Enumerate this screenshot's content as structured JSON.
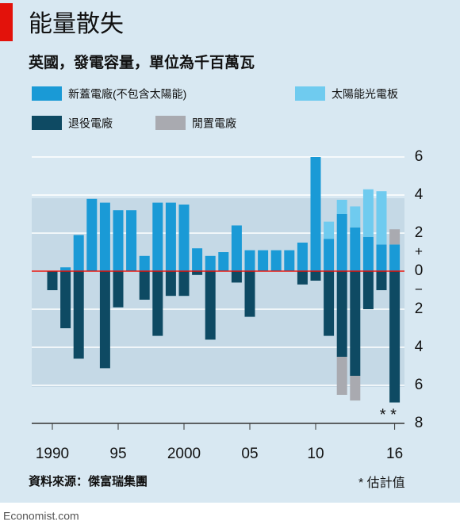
{
  "chart_data": {
    "type": "bar",
    "stacked": true,
    "title": "能量散失",
    "subtitle": "英國，發電容量，單位為千百萬瓦",
    "categories": [
      "1990",
      null,
      null,
      null,
      null,
      "95",
      null,
      null,
      null,
      null,
      "2000",
      null,
      null,
      null,
      null,
      "05",
      null,
      null,
      null,
      null,
      "10",
      null,
      null,
      null,
      null,
      null,
      "16"
    ],
    "series": [
      {
        "name": "新蓋電廠(不包含太陽能)",
        "color": "#1a9ad6",
        "values": [
          0,
          0.2,
          1.9,
          3.8,
          3.6,
          3.2,
          3.2,
          0.8,
          3.6,
          3.6,
          3.5,
          1.2,
          0.8,
          1.0,
          2.4,
          1.1,
          1.1,
          1.1,
          1.1,
          1.5,
          6.0,
          1.7,
          3.0,
          2.3,
          1.8,
          1.4,
          1.4
        ]
      },
      {
        "name": "太陽能光電板",
        "color": "#6fcbef",
        "values": [
          0,
          0,
          0,
          0,
          0,
          0,
          0,
          0,
          0,
          0,
          0,
          0,
          0,
          0,
          0,
          0,
          0,
          0,
          0,
          0,
          0,
          0.9,
          0.75,
          1.1,
          2.5,
          2.8,
          0
        ]
      },
      {
        "name": "退役電廠",
        "color": "#0e4a63",
        "values": [
          -1.0,
          -3.0,
          -4.6,
          0,
          -5.1,
          -1.9,
          0,
          -1.5,
          -3.4,
          -1.3,
          -1.3,
          -0.2,
          -3.6,
          0,
          -0.6,
          -2.4,
          0,
          0,
          0,
          -0.7,
          -0.5,
          -3.4,
          -4.5,
          -5.5,
          -2.0,
          -1.0,
          -6.9
        ]
      },
      {
        "name": "閒置電廠",
        "color": "#a9aab0",
        "values": [
          0,
          0,
          0,
          0,
          0,
          0,
          0,
          0,
          0,
          0,
          0,
          0,
          0,
          0,
          0,
          0,
          0,
          0,
          0,
          0,
          0,
          0,
          -2.0,
          -1.3,
          0,
          0,
          0.8
        ]
      }
    ],
    "ylim": [
      -8,
      6
    ],
    "yticks": [
      6,
      4,
      2,
      0,
      {
        "value": -2,
        "label": "2"
      },
      {
        "value": -4,
        "label": "4"
      },
      {
        "value": -6,
        "label": "6"
      },
      {
        "value": -8,
        "label": "8"
      }
    ],
    "plus_sign": "+",
    "minus_sign": "−",
    "estimate_marker": "* *",
    "footnote": "* 估計值",
    "source": "資料來源：傑富瑞集團",
    "zero_line_color": "#e3120b",
    "grid": true
  },
  "footer": "Economist.com"
}
